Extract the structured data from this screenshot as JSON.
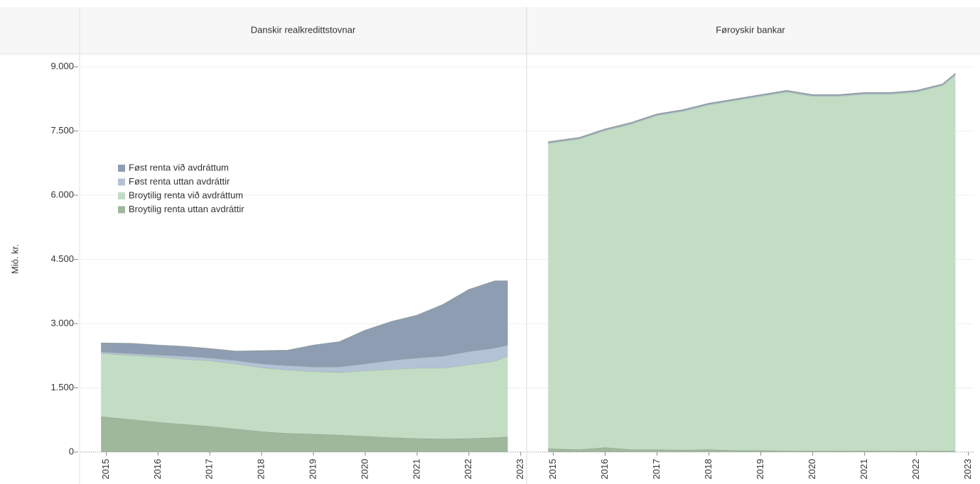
{
  "chart_data": [
    {
      "type": "area",
      "stacked": true,
      "title": "Danskir realkredittstovnar",
      "y_label": "Mió. kr.",
      "x": [
        2014.9,
        2015.5,
        2016,
        2016.5,
        2017,
        2017.5,
        2018,
        2018.5,
        2019,
        2019.5,
        2020,
        2020.5,
        2021,
        2021.5,
        2022,
        2022.5,
        2022.75
      ],
      "xlim": [
        2014.5,
        2023.1
      ],
      "xticks": [
        2015,
        2016,
        2017,
        2018,
        2019,
        2020,
        2021,
        2022,
        2023
      ],
      "ylim": [
        0,
        9300
      ],
      "yticks": [
        0,
        {
          "value": 1500,
          "label": "1.500"
        },
        {
          "value": 3000,
          "label": "3.000"
        },
        {
          "value": 4500,
          "label": "4.500"
        },
        {
          "value": 6000,
          "label": "6.000"
        },
        {
          "value": 7500,
          "label": "7.500"
        },
        {
          "value": 9000,
          "label": "9.000"
        }
      ],
      "grid": true,
      "legend": "upper left",
      "series": [
        {
          "name": "Broytilig renta uttan avdráttir",
          "color": "#9fb89c",
          "values": [
            830,
            760,
            700,
            650,
            600,
            540,
            480,
            440,
            420,
            400,
            370,
            340,
            320,
            310,
            320,
            340,
            360
          ]
        },
        {
          "name": "Broytilig renta við avdráttum",
          "color": "#c3ddc5",
          "values": [
            1470,
            1500,
            1520,
            1520,
            1530,
            1520,
            1490,
            1480,
            1460,
            1460,
            1530,
            1590,
            1640,
            1650,
            1720,
            1780,
            1880
          ]
        },
        {
          "name": "Føst renta uttan avdráttir",
          "color": "#b3c3d5",
          "values": [
            40,
            40,
            50,
            70,
            70,
            80,
            90,
            100,
            110,
            130,
            160,
            210,
            240,
            280,
            310,
            310,
            260
          ]
        },
        {
          "name": "Føst renta við avdráttum",
          "color": "#8e9db1",
          "values": [
            210,
            240,
            230,
            230,
            220,
            220,
            310,
            360,
            510,
            590,
            790,
            910,
            1000,
            1210,
            1450,
            1570,
            1500
          ]
        }
      ]
    },
    {
      "type": "area",
      "stacked": true,
      "title": "Føroyskir bankar",
      "x": [
        2014.9,
        2015.5,
        2016,
        2016.5,
        2017,
        2017.5,
        2018,
        2018.5,
        2019,
        2019.5,
        2020,
        2020.5,
        2021,
        2021.5,
        2022,
        2022.5,
        2022.75
      ],
      "xlim": [
        2014.5,
        2023.1
      ],
      "xticks": [
        2015,
        2016,
        2017,
        2018,
        2019,
        2020,
        2021,
        2022,
        2023
      ],
      "ylim": [
        0,
        9300
      ],
      "yticks": [
        0,
        {
          "value": 1500,
          "label": "1.500"
        },
        {
          "value": 3000,
          "label": "3.000"
        },
        {
          "value": 4500,
          "label": "4.500"
        },
        {
          "value": 6000,
          "label": "6.000"
        },
        {
          "value": 7500,
          "label": "7.500"
        },
        {
          "value": 9000,
          "label": "9.000"
        }
      ],
      "grid": true,
      "series": [
        {
          "color": "#9fb89c",
          "values": [
            80,
            60,
            110,
            60,
            60,
            50,
            60,
            40,
            40,
            30,
            30,
            30,
            30,
            30,
            30,
            30,
            30
          ]
        },
        {
          "color": "#c3ddc5",
          "values": [
            7130,
            7250,
            7400,
            7600,
            7800,
            7910,
            8050,
            8170,
            8270,
            8380,
            8280,
            8280,
            8330,
            8330,
            8380,
            8530,
            8780
          ]
        },
        {
          "color": "#b3c3d5",
          "values": [
            20,
            20,
            20,
            20,
            20,
            20,
            20,
            20,
            20,
            20,
            20,
            20,
            20,
            20,
            20,
            20,
            20
          ]
        },
        {
          "color": "#8e9db1",
          "values": [
            20,
            20,
            20,
            20,
            20,
            20,
            20,
            20,
            20,
            20,
            20,
            20,
            20,
            20,
            20,
            20,
            20
          ]
        }
      ]
    }
  ]
}
